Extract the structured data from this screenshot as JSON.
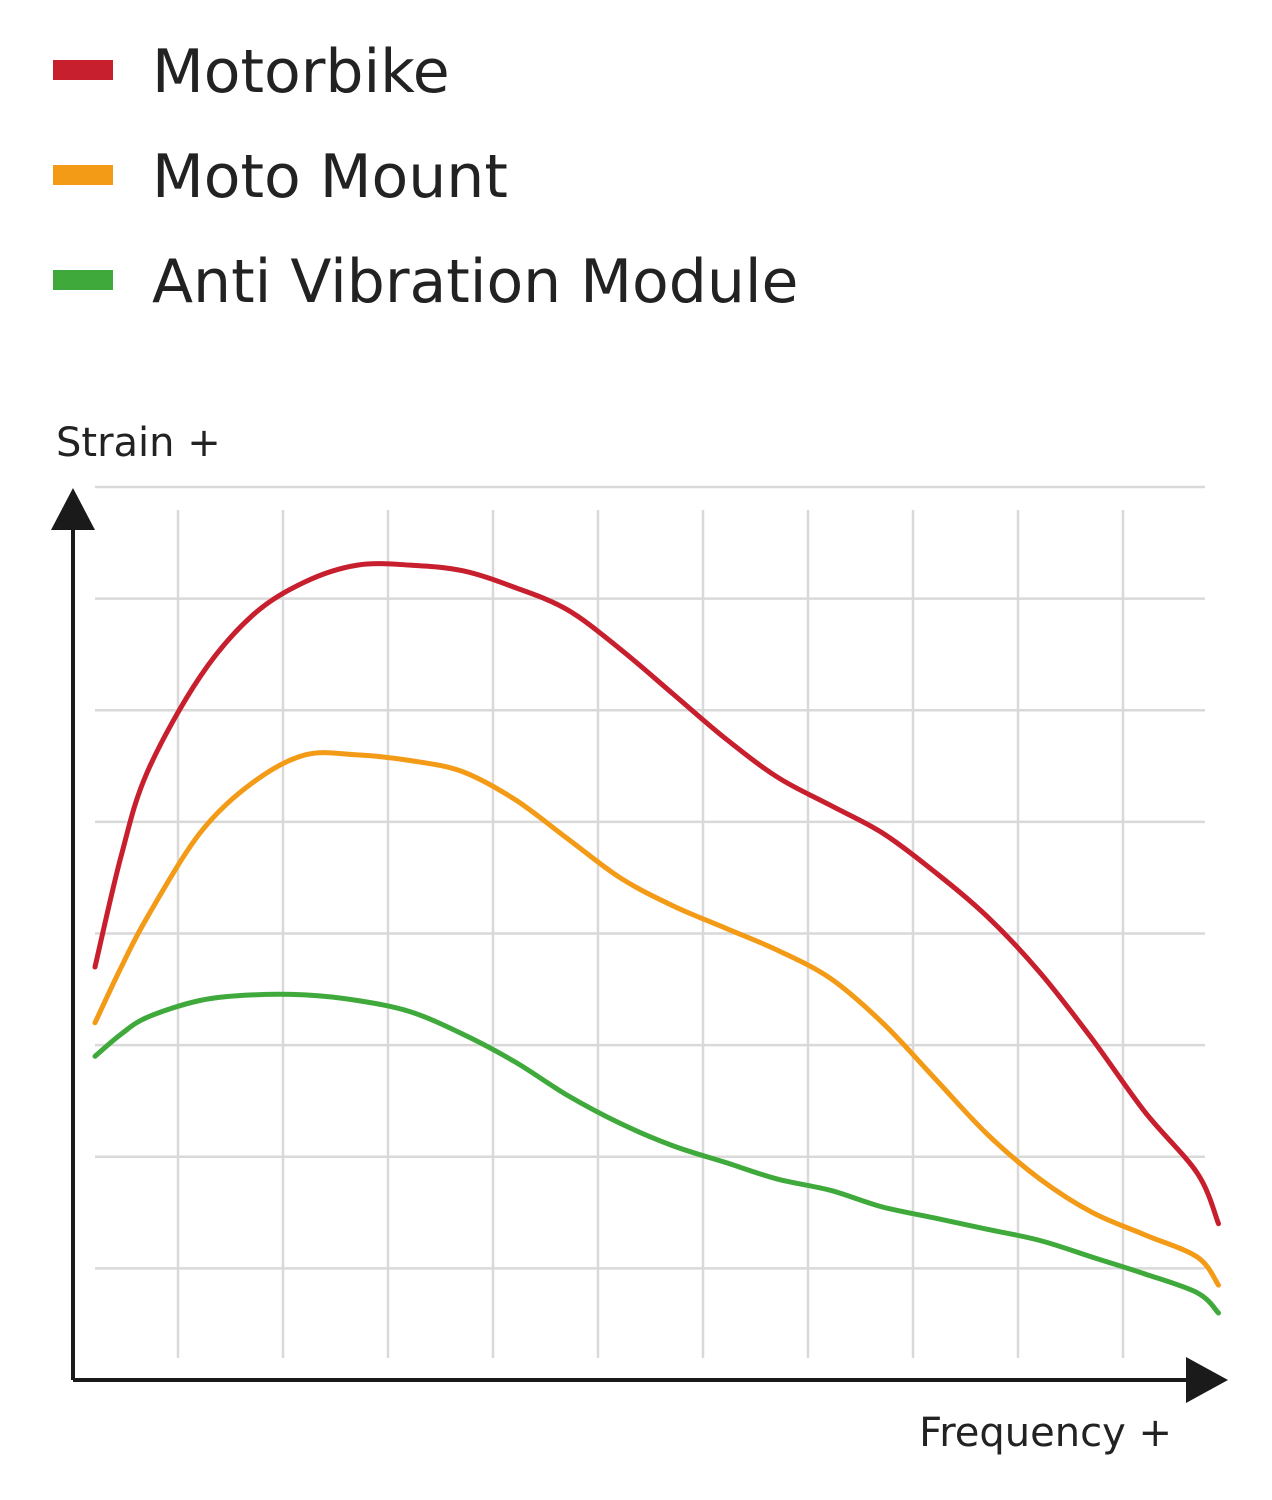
{
  "chart_data": {
    "type": "line",
    "title": "",
    "xlabel": "Frequency +",
    "ylabel": "Strain +",
    "x": [
      0,
      0.25,
      0.5,
      1,
      1.5,
      2,
      2.5,
      3,
      3.5,
      4,
      4.5,
      5,
      5.5,
      6,
      6.5,
      7,
      7.5,
      8,
      8.5,
      9,
      9.5,
      10,
      10.5,
      10.7
    ],
    "xlim": [
      0,
      11
    ],
    "ylim": [
      0,
      8
    ],
    "grid": true,
    "legend": "top-left",
    "colors": {
      "motorbike": "#c71f2d",
      "moto_mount": "#f39a16",
      "anti_vibration": "#3faa3b",
      "axis": "#1a1a1a",
      "grid": "#d9d9d9"
    },
    "series": [
      {
        "name": "Motorbike",
        "color": "#c71f2d",
        "values": [
          3.7,
          4.7,
          5.45,
          6.3,
          6.85,
          7.15,
          7.3,
          7.3,
          7.25,
          7.1,
          6.9,
          6.55,
          6.15,
          5.75,
          5.4,
          5.15,
          4.9,
          4.55,
          4.15,
          3.65,
          3.05,
          2.4,
          1.85,
          1.4
        ]
      },
      {
        "name": "Moto Mount",
        "color": "#f39a16",
        "values": [
          3.2,
          3.7,
          4.15,
          4.9,
          5.35,
          5.6,
          5.6,
          5.55,
          5.45,
          5.2,
          4.85,
          4.5,
          4.25,
          4.05,
          3.85,
          3.6,
          3.2,
          2.7,
          2.2,
          1.8,
          1.5,
          1.3,
          1.1,
          0.85
        ]
      },
      {
        "name": "Anti Vibration Module",
        "color": "#3faa3b",
        "values": [
          2.9,
          3.1,
          3.25,
          3.4,
          3.45,
          3.45,
          3.4,
          3.3,
          3.1,
          2.85,
          2.55,
          2.3,
          2.1,
          1.95,
          1.8,
          1.7,
          1.55,
          1.45,
          1.35,
          1.25,
          1.1,
          0.95,
          0.78,
          0.6
        ]
      }
    ]
  }
}
